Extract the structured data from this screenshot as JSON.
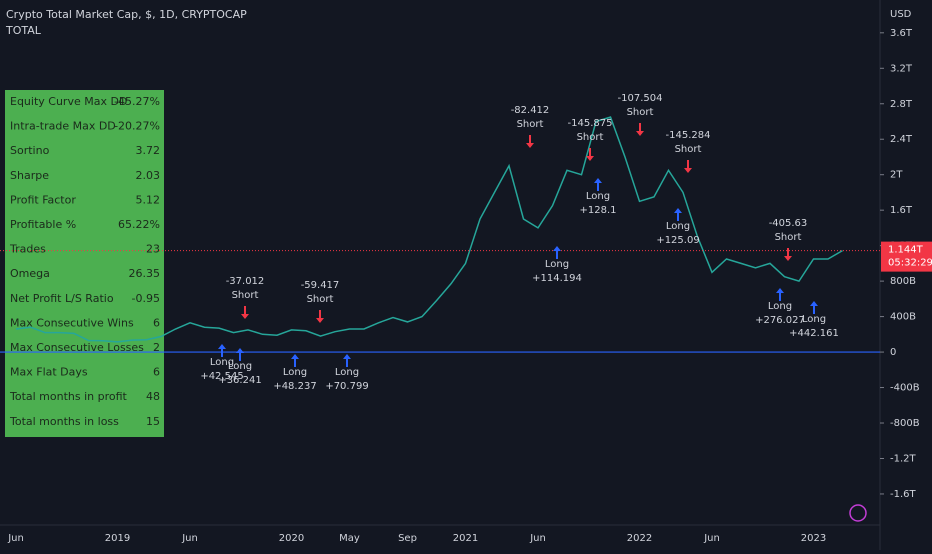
{
  "chart_data": {
    "type": "line",
    "title": "Crypto Total Market Cap, $, 1D, CRYPTOCAP",
    "subtitle": "TOTAL",
    "y_axis_label": "USD",
    "categories": [
      "Jun",
      null,
      null,
      null,
      null,
      null,
      null,
      "2019",
      null,
      null,
      null,
      null,
      "Jun",
      null,
      null,
      null,
      null,
      null,
      null,
      "2020",
      null,
      null,
      null,
      "May",
      null,
      null,
      null,
      "Sep",
      null,
      null,
      null,
      "2021",
      null,
      null,
      null,
      null,
      "Jun",
      null,
      null,
      null,
      null,
      null,
      null,
      "2022",
      null,
      null,
      null,
      null,
      "Jun",
      null,
      null,
      null,
      null,
      null,
      null,
      "2023",
      null,
      null
    ],
    "series": [
      {
        "name": "TOTAL",
        "color": "#26a69a",
        "values": [
          260,
          280,
          220,
          220,
          210,
          130,
          128,
          115,
          135,
          140,
          175,
          260,
          330,
          280,
          270,
          220,
          250,
          200,
          190,
          250,
          240,
          180,
          230,
          260,
          260,
          330,
          390,
          340,
          400,
          580,
          770,
          1000,
          1500,
          1800,
          2100,
          1500,
          1400,
          1650,
          2050,
          2000,
          2600,
          2650,
          2200,
          1700,
          1750,
          2050,
          1800,
          1300,
          900,
          1050,
          1000,
          950,
          1000,
          850,
          800,
          1050,
          1050,
          1144
        ]
      }
    ],
    "ylim": [
      -1950,
      3970
    ],
    "yticks": [
      {
        "value": 3600,
        "label": "3.6T"
      },
      {
        "value": 3200,
        "label": "3.2T"
      },
      {
        "value": 2800,
        "label": "2.8T"
      },
      {
        "value": 2400,
        "label": "2.4T"
      },
      {
        "value": 2000,
        "label": "2T"
      },
      {
        "value": 1600,
        "label": "1.6T"
      },
      {
        "value": 1200,
        "label": "1.2T"
      },
      {
        "value": 800,
        "label": "800B"
      },
      {
        "value": 400,
        "label": "400B"
      },
      0,
      {
        "value": -400,
        "label": "-400B"
      },
      {
        "value": -800,
        "label": "-800B"
      },
      {
        "value": -1200,
        "label": "-1.2T"
      },
      {
        "value": -1600,
        "label": "-1.6T"
      }
    ],
    "last_price": {
      "value": 1144,
      "label": "1.144T"
    },
    "countdown": "05:32:29",
    "trades": [
      {
        "signal": "Short",
        "pnl": "-37.012"
      },
      {
        "signal": "Long",
        "pnl": "+42.545"
      },
      {
        "signal": "Long",
        "pnl": "+36.241"
      },
      {
        "signal": "Short",
        "pnl": "-59.417"
      },
      {
        "signal": "Long",
        "pnl": "+48.237"
      },
      {
        "signal": "Long",
        "pnl": "+70.799"
      },
      {
        "signal": "Short",
        "pnl": "-82.412"
      },
      {
        "signal": "Long",
        "pnl": "+114.194"
      },
      {
        "signal": "Short",
        "pnl": "-145.875"
      },
      {
        "signal": "Long",
        "pnl": "+128.1"
      },
      {
        "signal": "Short",
        "pnl": "-107.504"
      },
      {
        "signal": "Short",
        "pnl": "-145.284"
      },
      {
        "signal": "Long",
        "pnl": "+125.09"
      },
      {
        "signal": "Short",
        "pnl": "-405.63"
      },
      {
        "signal": "Long",
        "pnl": "+276.027"
      },
      {
        "signal": "Long",
        "pnl": "+442.161"
      }
    ]
  },
  "stats_table": {
    "rows": [
      [
        "Equity Curve Max DD",
        "-45.27%"
      ],
      [
        "Intra-trade Max DD",
        "-20.27%"
      ],
      [
        "Sortino",
        "3.72"
      ],
      [
        "Sharpe",
        "2.03"
      ],
      [
        "Profit Factor",
        "5.12"
      ],
      [
        "Profitable %",
        "65.22%"
      ],
      [
        "Trades",
        "23"
      ],
      [
        "Omega",
        "26.35"
      ],
      [
        "Net Profit L/S Ratio",
        "-0.95"
      ],
      [
        "Max Consecutive Wins",
        "6"
      ],
      [
        "Max Consecutive Losses",
        "2"
      ],
      [
        "Max Flat Days",
        "6"
      ],
      [
        "Total months in profit",
        "48"
      ],
      [
        "Total months in loss",
        "15"
      ]
    ]
  }
}
